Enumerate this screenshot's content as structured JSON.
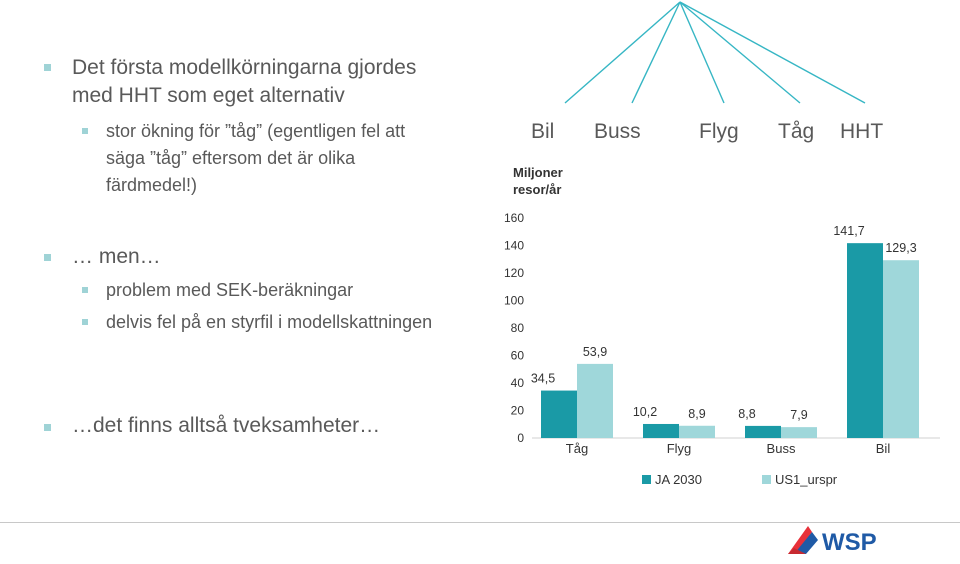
{
  "left_text": {
    "bullet1": "Det första modellkörningarna gjordes med HHT som eget alternativ",
    "bullet1_line1": "Det första modellkörningarna gjordes",
    "bullet1_line2": "med HHT som eget alternativ",
    "sub1_line1": "stor ökning för ”tåg” (egentligen fel att",
    "sub1_line2": "säga ”tåg” eftersom det är olika",
    "sub1_line3": "färdmedel!)",
    "bullet2": "… men…",
    "sub2a": "problem med SEK-beräkningar",
    "sub2b": "delvis fel på en styrfil i modellskattningen",
    "bullet3": "…det finns alltså tveksamheter…"
  },
  "tree_labels": [
    "Bil",
    "Buss",
    "Flyg",
    "Tåg",
    "HHT"
  ],
  "logo_text": "WSP",
  "colors": {
    "series1": "#1a9aa6",
    "series2": "#9fd7da",
    "bullet": "#9fd3d6",
    "tree": "#36b6c4"
  },
  "chart_data": {
    "type": "bar",
    "ylabel": "Miljoner resor/år",
    "ylim": [
      0,
      160
    ],
    "yticks": [
      0,
      20,
      40,
      60,
      80,
      100,
      120,
      140,
      160
    ],
    "categories": [
      "Tåg",
      "Flyg",
      "Buss",
      "Bil"
    ],
    "series": [
      {
        "name": "JA 2030",
        "values": [
          34.5,
          10.2,
          8.8,
          141.7
        ],
        "labels": [
          "34,5",
          "10,2",
          "8,8",
          "141,7"
        ]
      },
      {
        "name": "US1_urspr",
        "values": [
          53.9,
          8.9,
          7.9,
          129.3
        ],
        "labels": [
          "53,9",
          "8,9",
          "7,9",
          "129,3"
        ]
      }
    ],
    "grid": false,
    "legend": "bottom"
  }
}
